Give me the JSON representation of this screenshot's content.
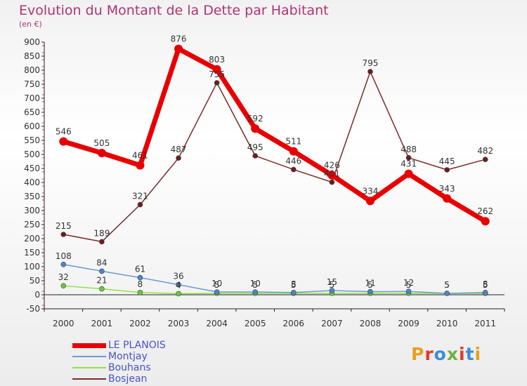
{
  "title": "Evolution du Montant de la Dette par Habitant",
  "unit_label": "(en €)",
  "logo": {
    "chars": [
      "P",
      "r",
      "o",
      "x",
      "i",
      "t",
      "i"
    ],
    "colors": [
      "#e8a020",
      "#e23a2c",
      "#3a8fd6",
      "#6cb23a",
      "#e23a2c",
      "#3a8fd6",
      "#e8a020"
    ]
  },
  "chart_data": {
    "type": "line",
    "x": [
      "2000",
      "2001",
      "2002",
      "2003",
      "2004",
      "2005",
      "2006",
      "2007",
      "2008",
      "2009",
      "2010",
      "2011"
    ],
    "ylim": [
      -50,
      900
    ],
    "yticks": [
      -50,
      0,
      50,
      100,
      150,
      200,
      250,
      300,
      350,
      400,
      450,
      500,
      550,
      600,
      650,
      700,
      750,
      800,
      850,
      900
    ],
    "grid": false,
    "legend_position": "bottom-left",
    "series": [
      {
        "name": "LE PLANOIS",
        "color": "#e80000",
        "marker": "#e80000",
        "values": [
          546,
          505,
          461,
          876,
          803,
          592,
          511,
          426,
          334,
          431,
          343,
          262
        ]
      },
      {
        "name": "Montjay",
        "color": "#6a9bd0",
        "marker": "#4a86c8",
        "values": [
          108,
          84,
          61,
          36,
          10,
          10,
          8,
          15,
          11,
          12,
          5,
          8
        ]
      },
      {
        "name": "Bouhans",
        "color": "#94e04c",
        "marker": "#6cc83c",
        "values": [
          32,
          21,
          8,
          4,
          5,
          5,
          5,
          5,
          5,
          5,
          5,
          5
        ]
      },
      {
        "name": "Bosjean",
        "color": "#7b2a2a",
        "marker": "#6a1f1f",
        "values": [
          215,
          189,
          321,
          487,
          755,
          495,
          446,
          401,
          795,
          488,
          445,
          482
        ]
      }
    ]
  }
}
